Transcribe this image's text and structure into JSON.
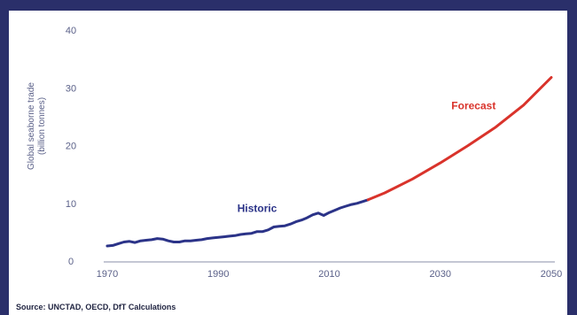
{
  "chart_data": {
    "type": "line",
    "ylabel": "Global seaborne trade\n(billion tonnes)",
    "xlim": [
      1970,
      2050
    ],
    "ylim": [
      0,
      40
    ],
    "xticks": [
      1970,
      1990,
      2010,
      2030,
      2050
    ],
    "yticks": [
      0,
      10,
      20,
      30,
      40
    ],
    "grid": false,
    "series": [
      {
        "name": "Historic",
        "color": "#2b3388",
        "x": [
          1970,
          1971,
          1972,
          1973,
          1974,
          1975,
          1976,
          1977,
          1978,
          1979,
          1980,
          1981,
          1982,
          1983,
          1984,
          1985,
          1986,
          1987,
          1988,
          1989,
          1990,
          1991,
          1992,
          1993,
          1994,
          1995,
          1996,
          1997,
          1998,
          1999,
          2000,
          2001,
          2002,
          2003,
          2004,
          2005,
          2006,
          2007,
          2008,
          2009,
          2010,
          2011,
          2012,
          2013,
          2014,
          2015,
          2016,
          2017
        ],
        "y": [
          2.6,
          2.7,
          3.0,
          3.3,
          3.4,
          3.2,
          3.5,
          3.6,
          3.7,
          3.9,
          3.8,
          3.5,
          3.3,
          3.3,
          3.5,
          3.5,
          3.6,
          3.7,
          3.9,
          4.0,
          4.1,
          4.2,
          4.3,
          4.4,
          4.6,
          4.7,
          4.8,
          5.1,
          5.1,
          5.4,
          5.9,
          6.0,
          6.1,
          6.4,
          6.8,
          7.1,
          7.5,
          8.0,
          8.3,
          7.9,
          8.4,
          8.8,
          9.2,
          9.5,
          9.8,
          10.0,
          10.3,
          10.6
        ]
      },
      {
        "name": "Forecast",
        "color": "#d9332b",
        "x": [
          2017,
          2020,
          2025,
          2030,
          2035,
          2040,
          2045,
          2050
        ],
        "y": [
          10.6,
          11.8,
          14.2,
          17.0,
          20.0,
          23.2,
          27.0,
          31.8
        ]
      }
    ]
  },
  "source": "Source: UNCTAD, OECD, DfT Calculations"
}
